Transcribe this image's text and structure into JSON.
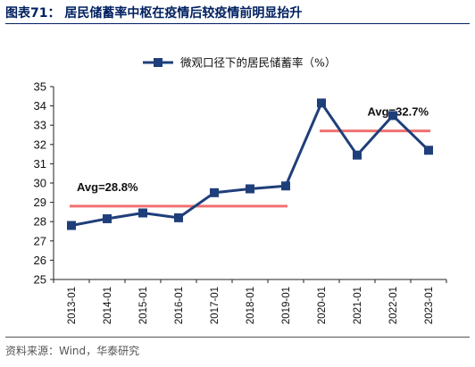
{
  "figure": {
    "title": "图表71： 居民储蓄率中枢在疫情后较疫情前明显抬升",
    "source": "资料来源：Wind，华泰研究"
  },
  "chart_data": {
    "type": "line",
    "categories": [
      "2013-01",
      "2014-01",
      "2015-01",
      "2016-01",
      "2017-01",
      "2018-01",
      "2019-01",
      "2020-01",
      "2021-01",
      "2022-01",
      "2023-01"
    ],
    "series": [
      {
        "name": "微观口径下的居民储蓄率（%）",
        "values": [
          27.8,
          28.15,
          28.45,
          28.2,
          29.5,
          29.7,
          29.85,
          34.15,
          31.45,
          33.5,
          31.7
        ],
        "color": "#1f3f7a"
      }
    ],
    "ylim": [
      25,
      35
    ],
    "yticks": [
      25,
      26,
      27,
      28,
      29,
      30,
      31,
      32,
      33,
      34,
      35
    ],
    "legend_position": "top-center",
    "grid": false,
    "averages": [
      {
        "label": "Avg=28.8%",
        "value": 28.8,
        "from": "2013-01",
        "to": "2019-01",
        "color": "#f07070"
      },
      {
        "label": "Avg=32.7%",
        "value": 32.7,
        "from": "2020-01",
        "to": "2023-01",
        "color": "#f07070"
      }
    ]
  }
}
